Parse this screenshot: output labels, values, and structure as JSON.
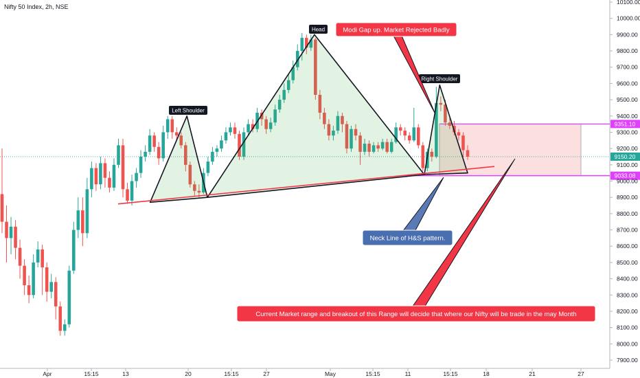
{
  "header": {
    "symbol_line": "Nifty 50 Index, 2h, NSE"
  },
  "chart_data": {
    "type": "candlestick",
    "ylim": [
      7900,
      10100
    ],
    "x_ticks": [
      "Apr",
      "15:15",
      "13",
      "20",
      "15:15",
      "27",
      "May",
      "15:15",
      "11",
      "15:15",
      "18",
      "21",
      "27"
    ],
    "y_ticks": [
      "10100.00",
      "10000.00",
      "9900.00",
      "9800.00",
      "9700.00",
      "9600.00",
      "9500.00",
      "9400.00",
      "9300.00",
      "9200.00",
      "9100.00",
      "9000.00",
      "8900.00",
      "8800.00",
      "8700.00",
      "8600.00",
      "8500.00",
      "8400.00",
      "8300.00",
      "8200.00",
      "8100.00",
      "8000.00",
      "7900.00"
    ],
    "price_labels": [
      {
        "text": "9351.10",
        "value": 9351.1,
        "color": "#e040fb"
      },
      {
        "text": "9150.20",
        "value": 9150.2,
        "color": "#26a69a"
      },
      {
        "text": "9033.08",
        "value": 9033.08,
        "color": "#e040fb"
      }
    ],
    "range_box": {
      "top": 9351.1,
      "bottom": 9033.08
    },
    "annotations": {
      "head": "Head",
      "left_shoulder": "Left Shoulder",
      "right_shoulder": "Right Shoulder",
      "gap_up": "Modi Gap up. Market Rejected Badly",
      "neckline": "Neck Line of H&S pattern.",
      "range_note": "Current Market range and breakout of this Range will decide that where our Nifty will be trade in the may Month"
    },
    "candles": [
      [
        8920,
        8750,
        9200,
        8680
      ],
      [
        8750,
        8650,
        8850,
        8500
      ],
      [
        8650,
        8720,
        8780,
        8550
      ],
      [
        8720,
        8590,
        8760,
        8520
      ],
      [
        8590,
        8480,
        8640,
        8400
      ],
      [
        8480,
        8360,
        8520,
        8300
      ],
      [
        8360,
        8300,
        8420,
        8250
      ],
      [
        8300,
        8500,
        8550,
        8280
      ],
      [
        8500,
        8580,
        8630,
        8470
      ],
      [
        8580,
        8470,
        8610,
        8300
      ],
      [
        8470,
        8320,
        8500,
        8260
      ],
      [
        8320,
        8380,
        8430,
        8280
      ],
      [
        8380,
        8230,
        8410,
        8150
      ],
      [
        8230,
        8080,
        8260,
        8050
      ],
      [
        8080,
        8120,
        8150,
        8050
      ],
      [
        8120,
        8450,
        8480,
        8100
      ],
      [
        8450,
        8700,
        8750,
        8430
      ],
      [
        8700,
        8820,
        8900,
        8650
      ],
      [
        8820,
        8680,
        8900,
        8600
      ],
      [
        8680,
        8950,
        9020,
        8650
      ],
      [
        8950,
        9080,
        9120,
        8900
      ],
      [
        9080,
        8980,
        9110,
        8940
      ],
      [
        8980,
        9110,
        9150,
        8950
      ],
      [
        9110,
        9020,
        9140,
        8960
      ],
      [
        9020,
        8960,
        9060,
        8930
      ],
      [
        8960,
        9100,
        9140,
        8940
      ],
      [
        9100,
        9220,
        9260,
        9080
      ],
      [
        9220,
        8950,
        9260,
        8900
      ],
      [
        8950,
        8880,
        8990,
        8860
      ],
      [
        8880,
        9000,
        9040,
        8850
      ],
      [
        9000,
        9050,
        9080,
        8960
      ],
      [
        9050,
        9150,
        9190,
        9020
      ],
      [
        9150,
        9180,
        9220,
        9120
      ],
      [
        9180,
        9280,
        9320,
        9160
      ],
      [
        9280,
        9210,
        9300,
        9180
      ],
      [
        9210,
        9140,
        9240,
        9100
      ],
      [
        9140,
        9300,
        9340,
        9120
      ],
      [
        9300,
        9380,
        9400,
        9260
      ],
      [
        9380,
        9300,
        9400,
        9260
      ],
      [
        9300,
        9280,
        9330,
        9250
      ],
      [
        9280,
        9220,
        9300,
        9200
      ],
      [
        9220,
        9100,
        9240,
        9060
      ],
      [
        9100,
        8980,
        9120,
        8960
      ],
      [
        8980,
        8940,
        9000,
        8910
      ],
      [
        8940,
        8930,
        8980,
        8900
      ],
      [
        8930,
        9050,
        9080,
        8920
      ],
      [
        9050,
        9120,
        9150,
        9030
      ],
      [
        9120,
        9180,
        9210,
        9100
      ],
      [
        9180,
        9200,
        9220,
        9150
      ],
      [
        9200,
        9250,
        9280,
        9180
      ],
      [
        9250,
        9300,
        9330,
        9230
      ],
      [
        9300,
        9330,
        9360,
        9280
      ],
      [
        9330,
        9290,
        9360,
        9260
      ],
      [
        9290,
        9150,
        9310,
        9130
      ],
      [
        9150,
        9300,
        9330,
        9130
      ],
      [
        9300,
        9350,
        9380,
        9280
      ],
      [
        9350,
        9320,
        9380,
        9300
      ],
      [
        9320,
        9420,
        9450,
        9300
      ],
      [
        9420,
        9380,
        9440,
        9340
      ],
      [
        9380,
        9320,
        9400,
        9290
      ],
      [
        9320,
        9360,
        9390,
        9300
      ],
      [
        9360,
        9440,
        9470,
        9340
      ],
      [
        9440,
        9500,
        9530,
        9420
      ],
      [
        9500,
        9560,
        9600,
        9480
      ],
      [
        9560,
        9620,
        9660,
        9540
      ],
      [
        9620,
        9700,
        9740,
        9600
      ],
      [
        9700,
        9800,
        9840,
        9680
      ],
      [
        9800,
        9880,
        9910,
        9740
      ],
      [
        9880,
        9820,
        9900,
        9780
      ],
      [
        9820,
        9870,
        9900,
        9800
      ],
      [
        9870,
        9530,
        9880,
        9500
      ],
      [
        9530,
        9420,
        9560,
        9380
      ],
      [
        9420,
        9350,
        9450,
        9320
      ],
      [
        9350,
        9280,
        9380,
        9250
      ],
      [
        9280,
        9310,
        9340,
        9250
      ],
      [
        9310,
        9400,
        9430,
        9290
      ],
      [
        9400,
        9350,
        9420,
        9300
      ],
      [
        9350,
        9200,
        9370,
        9170
      ],
      [
        9200,
        9320,
        9340,
        9180
      ],
      [
        9320,
        9280,
        9350,
        9250
      ],
      [
        9280,
        9180,
        9300,
        9100
      ],
      [
        9180,
        9230,
        9260,
        9160
      ],
      [
        9230,
        9180,
        9250,
        9150
      ],
      [
        9180,
        9220,
        9240,
        9170
      ],
      [
        9220,
        9200,
        9240,
        9180
      ],
      [
        9200,
        9240,
        9260,
        9190
      ],
      [
        9240,
        9180,
        9260,
        9170
      ],
      [
        9180,
        9240,
        9260,
        9170
      ],
      [
        9240,
        9330,
        9360,
        9230
      ],
      [
        9330,
        9310,
        9350,
        9280
      ],
      [
        9310,
        9280,
        9330,
        9250
      ],
      [
        9280,
        9250,
        9300,
        9230
      ],
      [
        9250,
        9330,
        9450,
        9240
      ],
      [
        9330,
        9220,
        9350,
        9200
      ],
      [
        9220,
        9080,
        9240,
        9060
      ],
      [
        9080,
        9180,
        9200,
        9060
      ],
      [
        9180,
        9150,
        9200,
        9120
      ],
      [
        9150,
        9480,
        9580,
        9140
      ],
      [
        9480,
        9470,
        9520,
        9430
      ],
      [
        9470,
        9360,
        9500,
        9340
      ],
      [
        9360,
        9340,
        9390,
        9320
      ],
      [
        9340,
        9300,
        9370,
        9280
      ],
      [
        9300,
        9280,
        9320,
        9250
      ],
      [
        9280,
        9190,
        9300,
        9150
      ],
      [
        9190,
        9150,
        9220,
        9130
      ]
    ]
  }
}
